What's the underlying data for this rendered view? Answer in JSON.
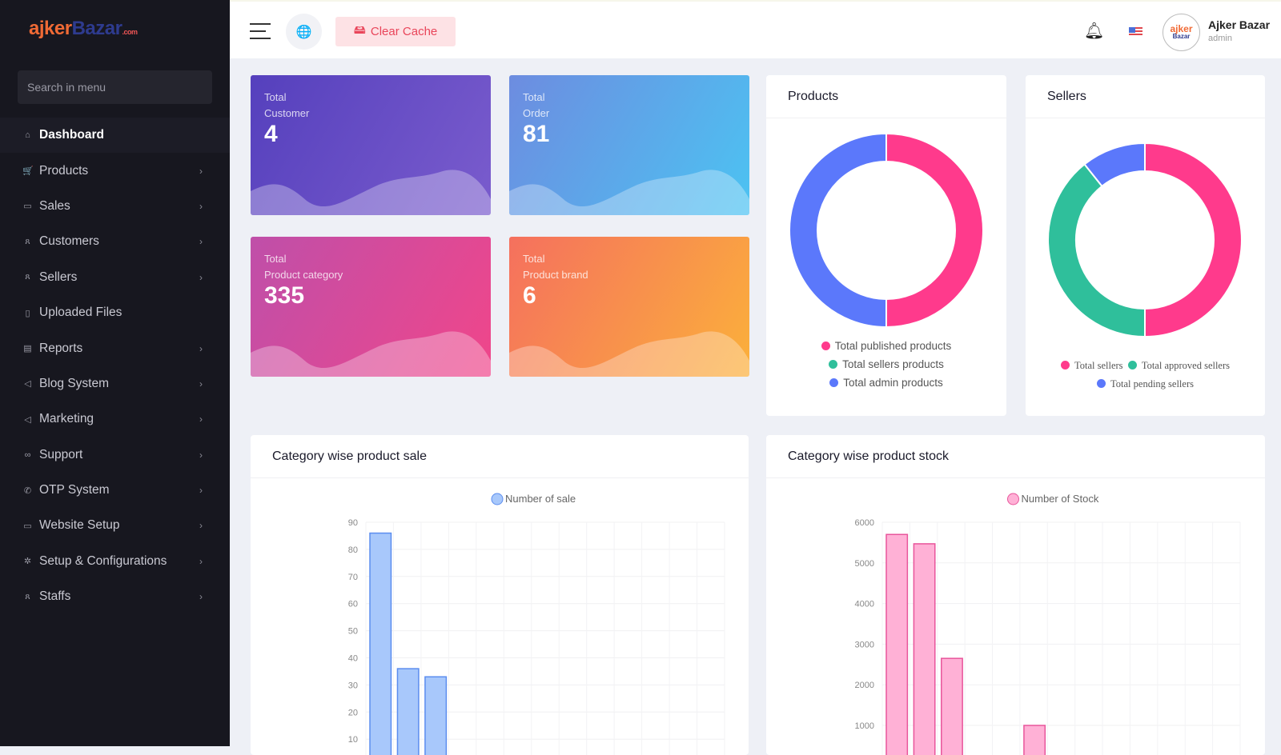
{
  "brand": {
    "logo_part1": "ajker",
    "logo_part2": "Bazar",
    "logo_suffix": ".com"
  },
  "sidebar": {
    "search_placeholder": "Search in menu",
    "items": [
      {
        "label": "Dashboard",
        "icon": "home-icon",
        "glyph": "⌂",
        "active": true,
        "chevron": false
      },
      {
        "label": "Products",
        "icon": "cart-icon",
        "glyph": "🛒",
        "chevron": true
      },
      {
        "label": "Sales",
        "icon": "money-icon",
        "glyph": "▭",
        "chevron": true
      },
      {
        "label": "Customers",
        "icon": "users-icon",
        "glyph": "ጸ",
        "chevron": true
      },
      {
        "label": "Sellers",
        "icon": "user-icon",
        "glyph": "ጸ",
        "chevron": true
      },
      {
        "label": "Uploaded Files",
        "icon": "folder-icon",
        "glyph": "▯",
        "chevron": false
      },
      {
        "label": "Reports",
        "icon": "document-icon",
        "glyph": "▤",
        "chevron": true
      },
      {
        "label": "Blog System",
        "icon": "megaphone-icon",
        "glyph": "◁",
        "chevron": true
      },
      {
        "label": "Marketing",
        "icon": "megaphone-icon",
        "glyph": "◁",
        "chevron": true
      },
      {
        "label": "Support",
        "icon": "link-icon",
        "glyph": "∞",
        "chevron": true
      },
      {
        "label": "OTP System",
        "icon": "phone-icon",
        "glyph": "✆",
        "chevron": true
      },
      {
        "label": "Website Setup",
        "icon": "monitor-icon",
        "glyph": "▭",
        "chevron": true
      },
      {
        "label": "Setup & Configurations",
        "icon": "gear-icon",
        "glyph": "✲",
        "chevron": true
      },
      {
        "label": "Staffs",
        "icon": "user-icon",
        "glyph": "ጸ",
        "chevron": true
      }
    ],
    "chevron_glyph": "›"
  },
  "header": {
    "clear_cache": "Clear Cache",
    "user_name": "Ajker Bazar",
    "user_role": "admin",
    "avatar_text1": "ajker",
    "avatar_text2": "Bazar"
  },
  "stats": [
    {
      "line1": "Total",
      "line2": "Customer",
      "value": "4",
      "colors": [
        "#5540bd",
        "#7a5ccd"
      ]
    },
    {
      "line1": "Total",
      "line2": "Order",
      "value": "81",
      "colors": [
        "#6d8ce0",
        "#4cc3f2"
      ]
    },
    {
      "line1": "Total",
      "line2": "Product category",
      "value": "335",
      "colors": [
        "#bf4fa9",
        "#f0468a"
      ]
    },
    {
      "line1": "Total",
      "line2": "Product brand",
      "value": "6",
      "colors": [
        "#f5705e",
        "#fbb03b"
      ]
    }
  ],
  "chart_data": [
    {
      "type": "pie",
      "title": "Products",
      "donut": true,
      "labels": [
        "Total published products",
        "Total sellers products",
        "Total admin products"
      ],
      "values": [
        50,
        0,
        50
      ],
      "colors": [
        "#ff3a8c",
        "#2fbf9b",
        "#5b78fb"
      ],
      "legend": "bottom"
    },
    {
      "type": "pie",
      "title": "Sellers",
      "donut": true,
      "labels": [
        "Total sellers",
        "Total approved sellers",
        "Total pending sellers"
      ],
      "values": [
        14,
        11,
        3
      ],
      "colors": [
        "#ff3a8c",
        "#2fbf9b",
        "#5b78fb"
      ],
      "legend": "bottom"
    },
    {
      "type": "bar",
      "title": "Category wise product sale",
      "series": [
        {
          "name": "Number of sale",
          "values": [
            86,
            36,
            33,
            0,
            0,
            0,
            0,
            0,
            0,
            0,
            0,
            0,
            0
          ]
        }
      ],
      "yticks": [
        90,
        80,
        70,
        60,
        50,
        40,
        30,
        20,
        10
      ],
      "ylim": [
        0,
        90
      ],
      "grid": true,
      "legend": "top",
      "color": "#a8c8fb",
      "border": "#5b8def"
    },
    {
      "type": "bar",
      "title": "Category wise product stock",
      "series": [
        {
          "name": "Number of Stock",
          "values": [
            5700,
            5470,
            2650,
            0,
            0,
            1000,
            0,
            0,
            0,
            0,
            0,
            0,
            0
          ]
        }
      ],
      "yticks": [
        6000,
        5000,
        4000,
        3000,
        2000,
        1000
      ],
      "ylim": [
        0,
        6000
      ],
      "grid": true,
      "legend": "top",
      "color": "#ffb1d6",
      "border": "#e8559b"
    }
  ]
}
